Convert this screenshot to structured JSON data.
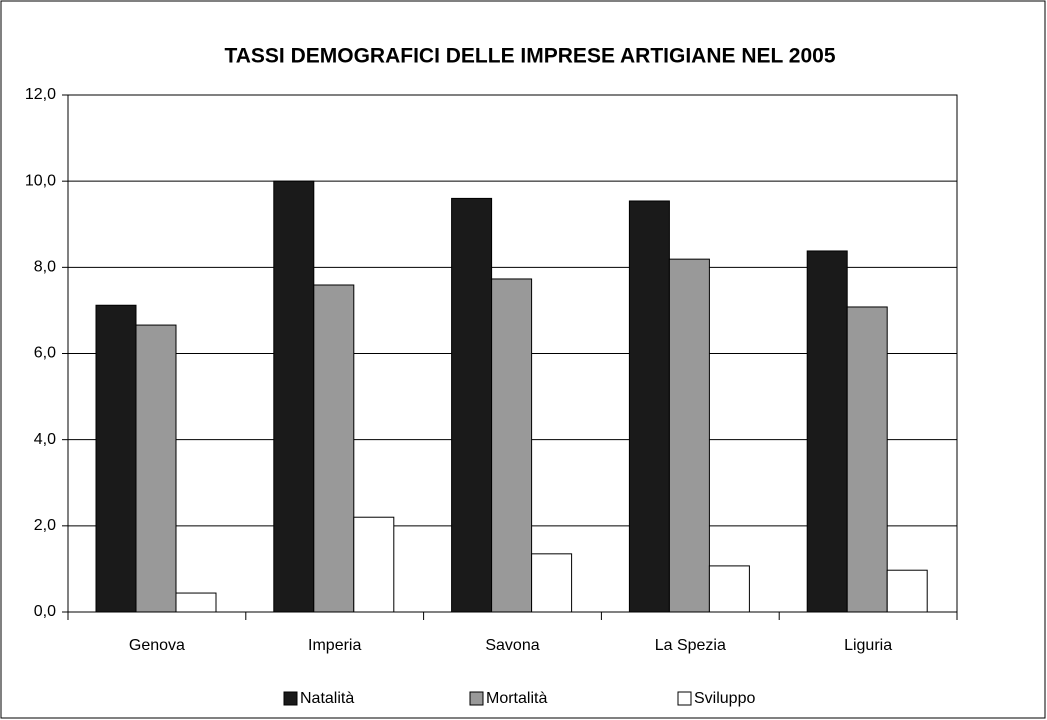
{
  "chart_data": {
    "type": "bar",
    "title": "TASSI DEMOGRAFICI DELLE IMPRESE ARTIGIANE NEL 2005",
    "categories": [
      "Genova",
      "Imperia",
      "Savona",
      "La Spezia",
      "Liguria"
    ],
    "series": [
      {
        "name": "Natalità",
        "color": "#1a1a1a",
        "values": [
          7.12,
          10.0,
          9.6,
          9.54,
          8.38
        ]
      },
      {
        "name": "Mortalità",
        "color": "#999999",
        "values": [
          6.66,
          7.59,
          7.73,
          8.19,
          7.08
        ]
      },
      {
        "name": "Sviluppo",
        "color": "#ffffff",
        "values": [
          0.44,
          2.2,
          1.35,
          1.07,
          0.97
        ]
      }
    ],
    "ylim": [
      0,
      12
    ],
    "yticks": [
      {
        "value": 0,
        "label": "0,0"
      },
      {
        "value": 2,
        "label": "2,0"
      },
      {
        "value": 4,
        "label": "4,0"
      },
      {
        "value": 6,
        "label": "6,0"
      },
      {
        "value": 8,
        "label": "8,0"
      },
      {
        "value": 10,
        "label": "10,0"
      },
      {
        "value": 12,
        "label": "12,0"
      }
    ],
    "grid": true,
    "legend": "bottom"
  }
}
